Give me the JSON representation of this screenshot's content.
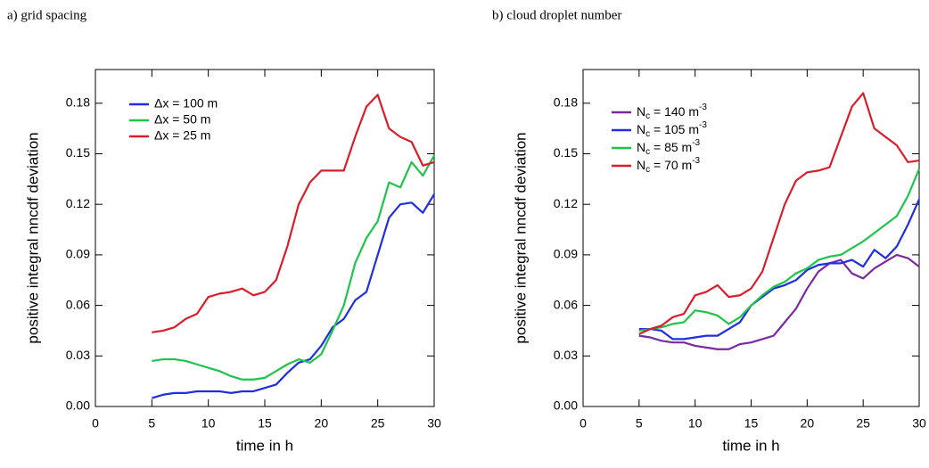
{
  "chart_data": [
    {
      "type": "line",
      "title": "a) grid spacing",
      "xlabel": "time in h",
      "ylabel": "positive integral nncdf deviation",
      "x": [
        5,
        6,
        7,
        8,
        9,
        10,
        11,
        12,
        13,
        14,
        15,
        16,
        17,
        18,
        19,
        20,
        21,
        22,
        23,
        24,
        25,
        26,
        27,
        28,
        29,
        30
      ],
      "xlim": [
        0,
        30
      ],
      "xticks": [
        0,
        5,
        10,
        15,
        20,
        25,
        30
      ],
      "ylim": [
        0,
        0.2
      ],
      "yticks": [
        {
          "value": 0,
          "label": "0.00"
        },
        0.03,
        0.06,
        0.09,
        0.12,
        0.15,
        0.18
      ],
      "legend": "upper left",
      "series": [
        {
          "name": "Δx = 100 m",
          "color": "#1f2ee0",
          "values": [
            0.005,
            0.007,
            0.008,
            0.008,
            0.009,
            0.009,
            0.009,
            0.008,
            0.009,
            0.009,
            0.011,
            0.013,
            0.02,
            0.026,
            0.028,
            0.036,
            0.047,
            0.052,
            0.063,
            0.068,
            0.09,
            0.112,
            0.12,
            0.121,
            0.115,
            0.126
          ]
        },
        {
          "name": "Δx = 50 m",
          "color": "#1fc44a",
          "values": [
            0.027,
            0.028,
            0.028,
            0.027,
            0.025,
            0.023,
            0.021,
            0.018,
            0.016,
            0.016,
            0.017,
            0.021,
            0.025,
            0.028,
            0.026,
            0.031,
            0.045,
            0.06,
            0.085,
            0.1,
            0.11,
            0.133,
            0.13,
            0.145,
            0.137,
            0.149
          ]
        },
        {
          "name": "Δx = 25 m",
          "color": "#d81e2a",
          "values": [
            0.044,
            0.045,
            0.047,
            0.052,
            0.055,
            0.065,
            0.067,
            0.068,
            0.07,
            0.066,
            0.068,
            0.075,
            0.095,
            0.12,
            0.133,
            0.14,
            0.14,
            0.14,
            0.16,
            0.178,
            0.185,
            0.165,
            0.16,
            0.157,
            0.143,
            0.145
          ]
        }
      ]
    },
    {
      "type": "line",
      "title": "b) cloud droplet number",
      "xlabel": "time in h",
      "ylabel": "positive integral nncdf deviation",
      "x": [
        5,
        6,
        7,
        8,
        9,
        10,
        11,
        12,
        13,
        14,
        15,
        16,
        17,
        18,
        19,
        20,
        21,
        22,
        23,
        24,
        25,
        26,
        27,
        28,
        29,
        30
      ],
      "xlim": [
        0,
        30
      ],
      "xticks": [
        0,
        5,
        10,
        15,
        20,
        25,
        30
      ],
      "ylim": [
        0,
        0.2
      ],
      "yticks": [
        {
          "value": 0,
          "label": "0.00"
        },
        0.03,
        0.06,
        0.09,
        0.12,
        0.15,
        0.18
      ],
      "legend": "upper left",
      "series": [
        {
          "name": "Nc = 140 m-3",
          "color": "#7a2a9e",
          "values": [
            0.042,
            0.041,
            0.039,
            0.038,
            0.038,
            0.036,
            0.035,
            0.034,
            0.034,
            0.037,
            0.038,
            0.04,
            0.042,
            0.05,
            0.058,
            0.07,
            0.08,
            0.085,
            0.087,
            0.079,
            0.076,
            0.082,
            0.086,
            0.09,
            0.088,
            0.083
          ]
        },
        {
          "name": "Nc = 105 m-3",
          "color": "#1f2ee0",
          "values": [
            0.046,
            0.046,
            0.045,
            0.04,
            0.04,
            0.041,
            0.042,
            0.042,
            0.046,
            0.05,
            0.06,
            0.065,
            0.07,
            0.072,
            0.075,
            0.081,
            0.084,
            0.085,
            0.085,
            0.087,
            0.083,
            0.093,
            0.088,
            0.095,
            0.108,
            0.123
          ]
        },
        {
          "name": "Nc = 85 m-3",
          "color": "#1fc44a",
          "values": [
            0.045,
            0.046,
            0.047,
            0.049,
            0.05,
            0.057,
            0.056,
            0.054,
            0.049,
            0.053,
            0.06,
            0.066,
            0.071,
            0.074,
            0.079,
            0.082,
            0.087,
            0.089,
            0.09,
            0.094,
            0.098,
            0.103,
            0.108,
            0.113,
            0.125,
            0.141
          ]
        },
        {
          "name": "Nc = 70 m-3",
          "color": "#d81e2a",
          "values": [
            0.043,
            0.046,
            0.048,
            0.053,
            0.055,
            0.066,
            0.068,
            0.072,
            0.065,
            0.066,
            0.07,
            0.08,
            0.1,
            0.12,
            0.134,
            0.139,
            0.14,
            0.142,
            0.16,
            0.178,
            0.186,
            0.165,
            0.16,
            0.155,
            0.145,
            0.146
          ]
        }
      ]
    }
  ]
}
